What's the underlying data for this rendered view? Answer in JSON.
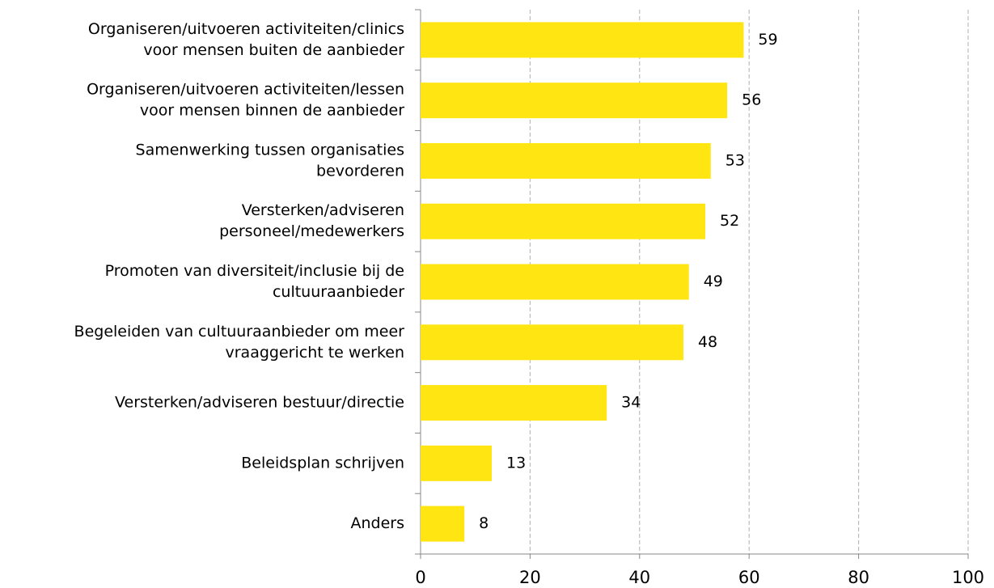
{
  "chart_data": {
    "type": "bar",
    "orientation": "horizontal",
    "categories": [
      [
        "Organiseren/uitvoeren activiteiten/clinics",
        "voor mensen buiten de aanbieder"
      ],
      [
        "Organiseren/uitvoeren activiteiten/lessen",
        "voor mensen binnen de aanbieder"
      ],
      [
        "Samenwerking tussen organisaties",
        "bevorderen"
      ],
      [
        "Versterken/adviseren",
        "personeel/medewerkers"
      ],
      [
        "Promoten van diversiteit/inclusie bij de",
        "cultuuraanbieder"
      ],
      [
        "Begeleiden van cultuuraanbieder om meer",
        "vraaggericht te werken"
      ],
      [
        "Versterken/adviseren bestuur/directie"
      ],
      [
        "Beleidsplan schrijven"
      ],
      [
        "Anders"
      ]
    ],
    "values": [
      59,
      56,
      53,
      52,
      49,
      48,
      34,
      13,
      8
    ],
    "color": "#ffe512",
    "xlim": [
      0,
      100
    ],
    "xticks": [
      0,
      20,
      40,
      60,
      80,
      100
    ],
    "grid": true
  }
}
